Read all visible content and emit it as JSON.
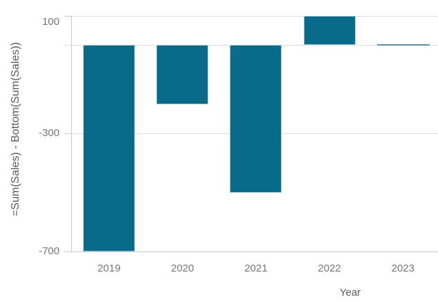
{
  "chart_data": {
    "type": "bar",
    "title": "",
    "categories": [
      "2019",
      "2020",
      "2021",
      "2022",
      "2023"
    ],
    "values": [
      -700,
      -200,
      -500,
      100,
      0
    ],
    "xlabel": "Year",
    "ylabel": "=Sum(Sales) - Bottom(Sum(Sales))",
    "ylim": [
      -700,
      100
    ],
    "yticks": [
      100,
      -300,
      -700
    ],
    "ytick_labels": [
      "100",
      "-300",
      "-700"
    ],
    "gridline_values": [
      100,
      0,
      -300,
      -700
    ],
    "zero_line": true,
    "legend": "none",
    "colors": {
      "bar": "#086b89",
      "bar_border": "#9fc6d9",
      "near_zero_bar": "#5e92ac",
      "gridline": "#dcdcdc",
      "axis_line": "#c8c8c8",
      "tick_text": "#757575",
      "axis_title_text": "#5a5a5a"
    }
  }
}
